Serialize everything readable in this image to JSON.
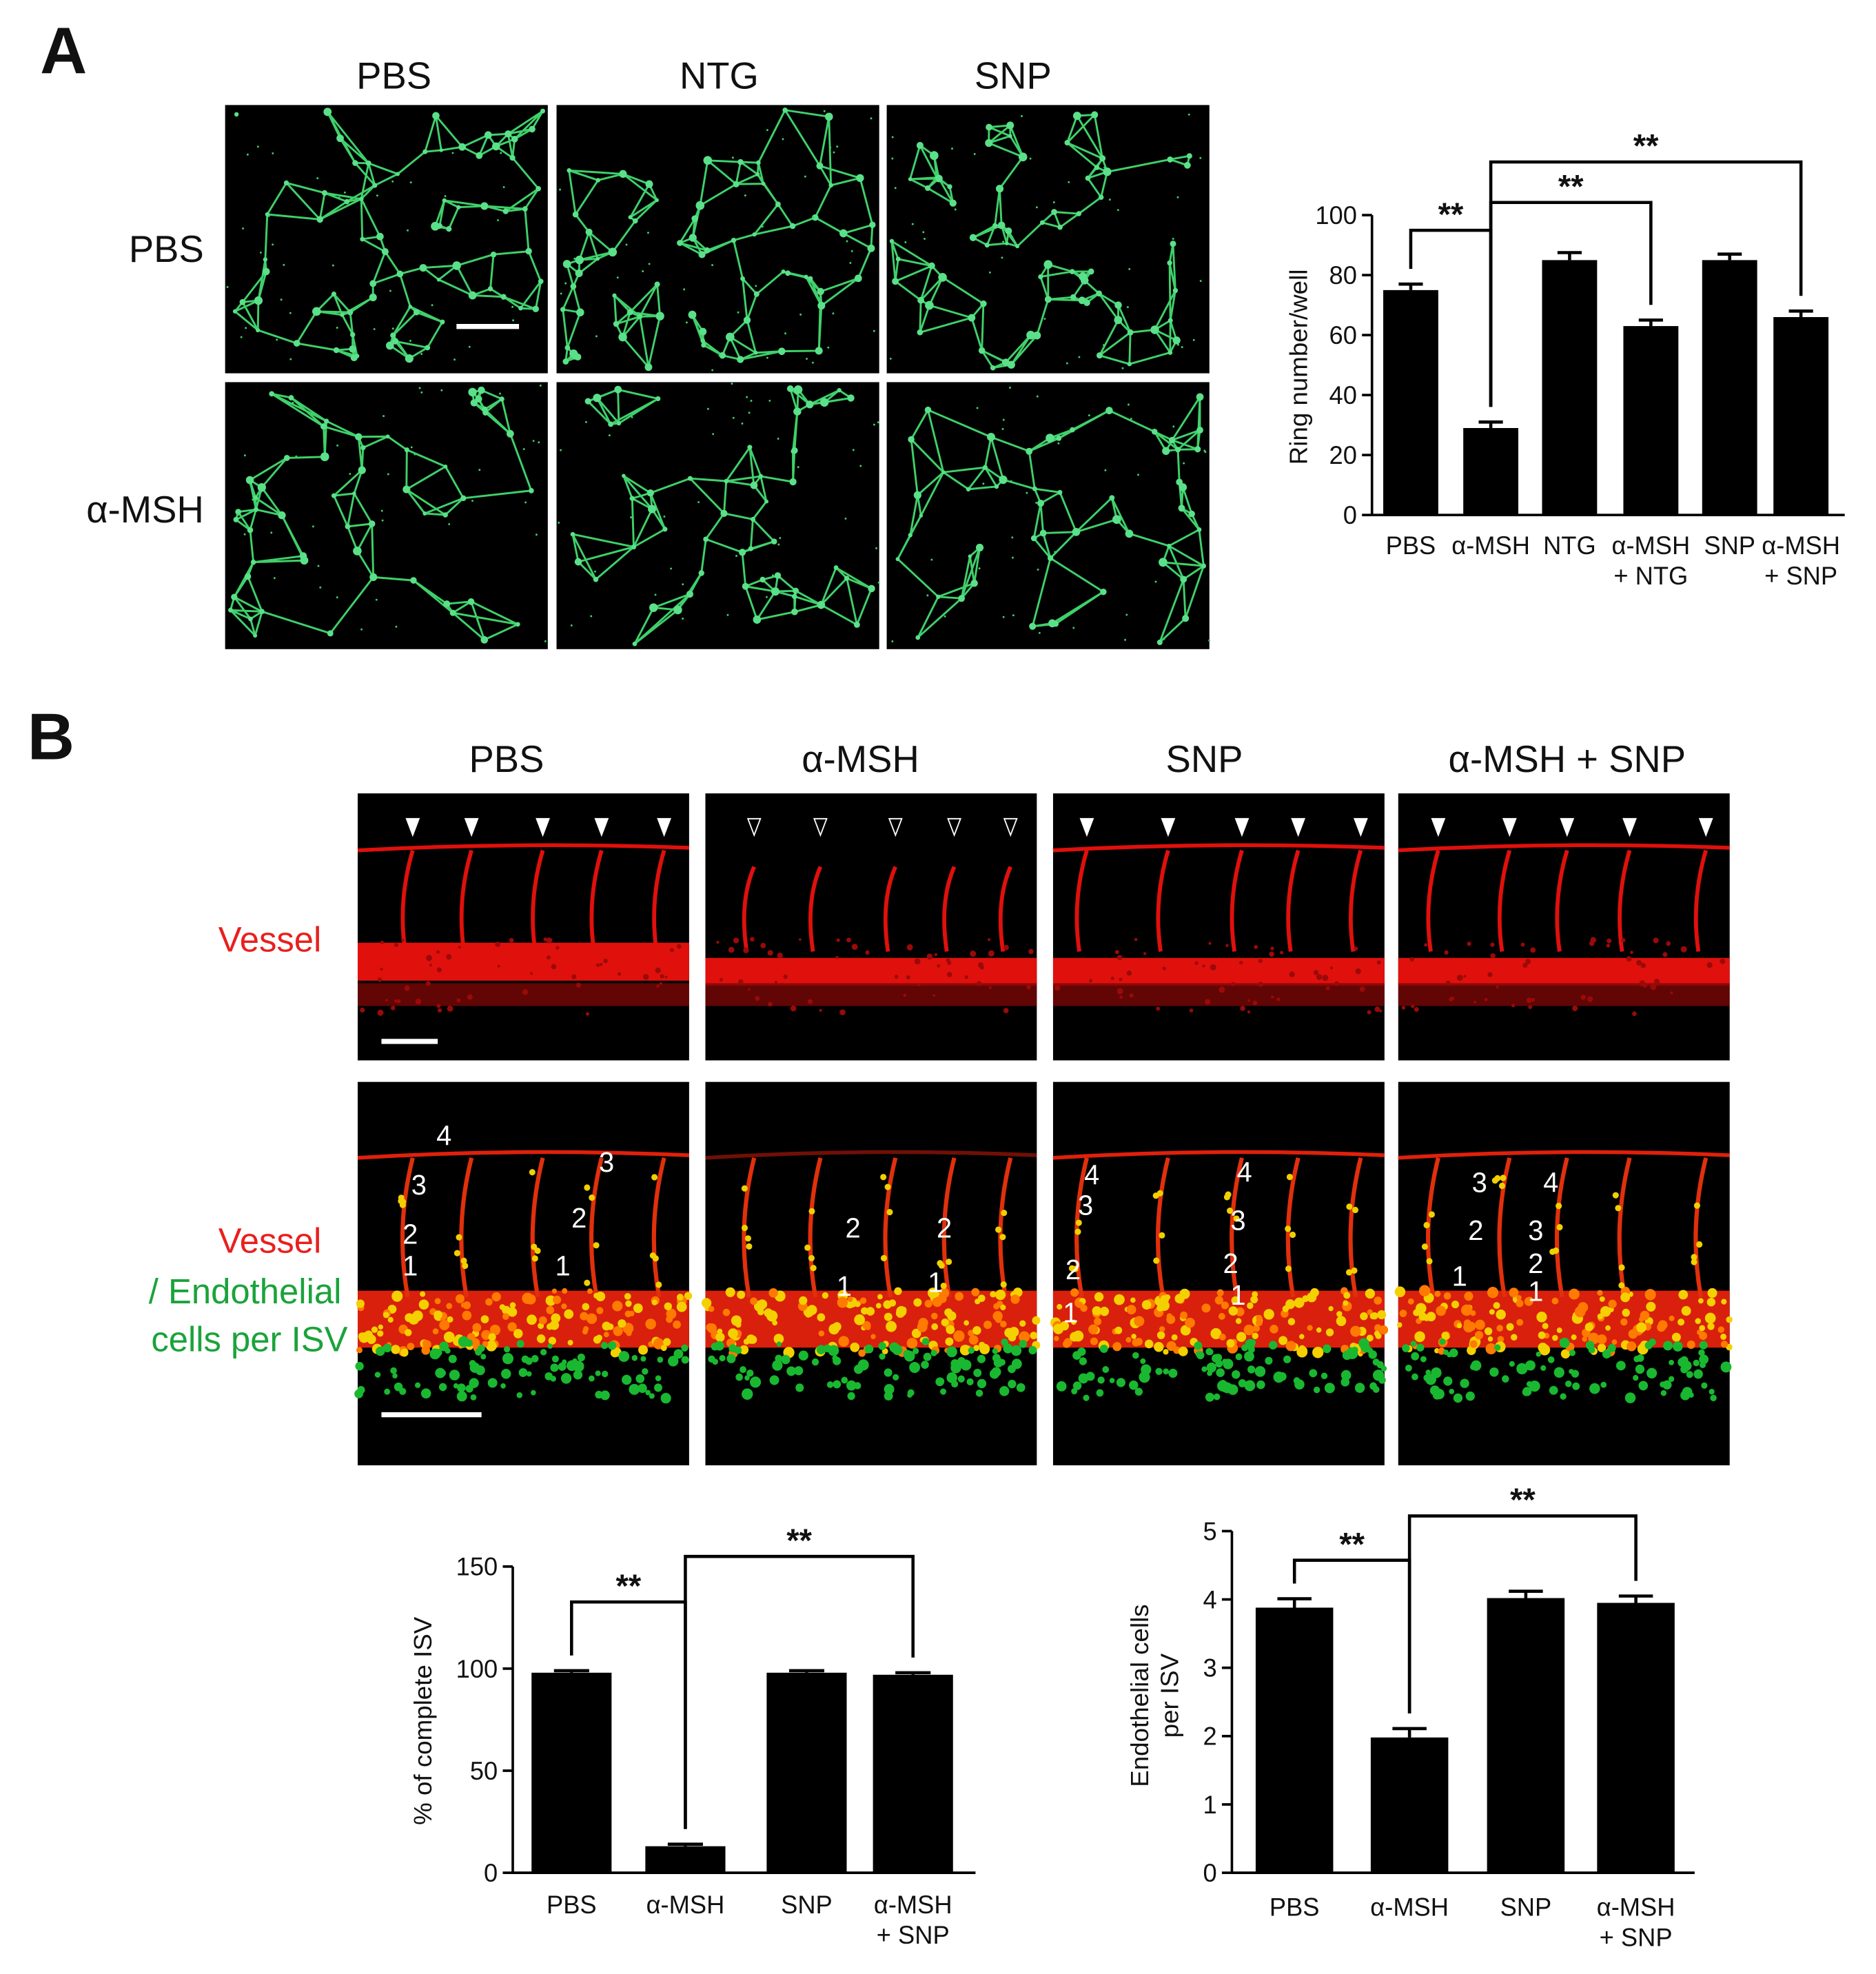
{
  "panel_a": {
    "label": "A",
    "column_headers": [
      "PBS",
      "NTG",
      "SNP"
    ],
    "row_headers": [
      "PBS",
      "α-MSH"
    ]
  },
  "panel_b": {
    "label": "B",
    "column_headers": [
      "PBS",
      "α-MSH",
      "SNP",
      "α-MSH + SNP"
    ],
    "row_headers": [
      "Vessel",
      "Vessel",
      "/ Endothelial",
      "cells per ISV"
    ],
    "cell_counts": [
      [
        "4",
        "3",
        "3",
        "2",
        "2",
        "1",
        "1"
      ],
      [
        "2",
        "2",
        "1",
        "1"
      ],
      [
        "4",
        "4",
        "3",
        "3",
        "2",
        "2",
        "1",
        "1"
      ],
      [
        "3",
        "4",
        "2",
        "3",
        "1",
        "2",
        "1"
      ]
    ]
  },
  "chart_data": [
    {
      "type": "bar",
      "ylabel": "Ring number/well",
      "categories": [
        "PBS",
        "α-MSH",
        "NTG",
        "α-MSH\n+ NTG",
        "SNP",
        "α-MSH\n+ SNP"
      ],
      "values": [
        75,
        29,
        85,
        63,
        85,
        66
      ],
      "errors": [
        2,
        2,
        2.5,
        2,
        2,
        2
      ],
      "color": "#000000",
      "ylim": [
        0,
        100
      ],
      "yticks": [
        0,
        20,
        40,
        60,
        80,
        100
      ],
      "annotations": [
        "**",
        "**",
        "**"
      ]
    },
    {
      "type": "bar",
      "ylabel": "% of complete ISV",
      "categories": [
        "PBS",
        "α-MSH",
        "SNP",
        "α-MSH\n+ SNP"
      ],
      "values": [
        98,
        13,
        98,
        97
      ],
      "errors": [
        1,
        1,
        1,
        1
      ],
      "color": "#000000",
      "ylim": [
        0,
        150
      ],
      "yticks": [
        0,
        50,
        100,
        150
      ],
      "annotations": [
        "**",
        "**"
      ]
    },
    {
      "type": "bar",
      "ylabel": "Endothelial cells\nper ISV",
      "categories": [
        "PBS",
        "α-MSH",
        "SNP",
        "α-MSH\n+ SNP"
      ],
      "values": [
        3.88,
        1.98,
        4.02,
        3.95
      ],
      "errors": [
        0.13,
        0.13,
        0.1,
        0.1
      ],
      "color": "#000000",
      "ylim": [
        0,
        5
      ],
      "yticks": [
        0,
        1,
        2,
        3,
        4,
        5
      ],
      "annotations": [
        "**",
        "**"
      ]
    }
  ]
}
